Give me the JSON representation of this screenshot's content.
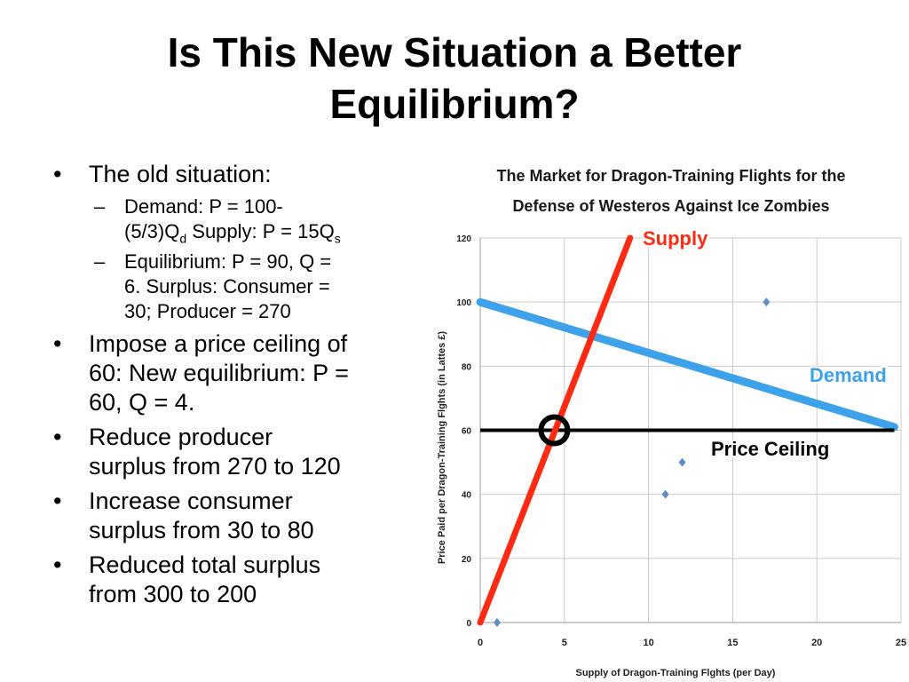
{
  "slide": {
    "title_line1": "Is This New Situation a Better",
    "title_line2": "Equilibrium?"
  },
  "bullets": {
    "b1": "The old situation:",
    "b1_sub1_a": "Demand: P = 100-",
    "b1_sub1_b": "(5/3)Q",
    "b1_sub1_sub_d": "d",
    "b1_sub1_c": " Supply: P = 15Q",
    "b1_sub1_sub_s": "s",
    "b1_sub2_a": "Equilibrium: P = 90, Q =",
    "b1_sub2_b": "6. Surplus: Consumer =",
    "b1_sub2_c": "30; Producer = 270",
    "b2_a": "Impose a price ceiling of",
    "b2_b": "60: New equilibrium: P =",
    "b2_c": "60, Q = 4.",
    "b3_a": "Reduce producer",
    "b3_b": "surplus from 270 to 120",
    "b4_a": "Increase consumer",
    "b4_b": "surplus from 30 to 80",
    "b5_a": "Reduced total surplus",
    "b5_b": "from 300 to 200"
  },
  "chart_data": {
    "type": "line",
    "title": "The Market for Dragon-Training Flights for the Defense of Westeros Against Ice Zombies",
    "title_line1": "The Market for Dragon-Training Flights for the",
    "title_line2": "Defense of Westeros Against Ice Zombies",
    "xlabel": "Supply of Dragon-Training Flghts (per Day)",
    "ylabel": "Price Paid per Dragon-Training Flghts (in Lattes £)",
    "xlim": [
      0,
      25
    ],
    "ylim": [
      0,
      120
    ],
    "x_ticks": [
      0,
      5,
      10,
      15,
      20,
      25
    ],
    "y_ticks": [
      0,
      20,
      40,
      60,
      80,
      100,
      120
    ],
    "grid": true,
    "series": [
      {
        "name": "Supply",
        "color": "#ff2a12",
        "points": [
          [
            0,
            0
          ],
          [
            8.9,
            120
          ]
        ]
      },
      {
        "name": "Demand",
        "color": "#3ea2ea",
        "points": [
          [
            0,
            100
          ],
          [
            24.6,
            61
          ]
        ]
      },
      {
        "name": "Price Ceiling",
        "color": "#000000",
        "points": [
          [
            0,
            60
          ],
          [
            24.6,
            60
          ]
        ]
      }
    ],
    "scatter": {
      "color": "#5b8fc6",
      "points": [
        [
          1,
          0
        ],
        [
          11,
          40
        ],
        [
          12,
          50
        ],
        [
          17,
          100
        ]
      ]
    },
    "marker": {
      "x": 4.4,
      "y": 60
    }
  }
}
